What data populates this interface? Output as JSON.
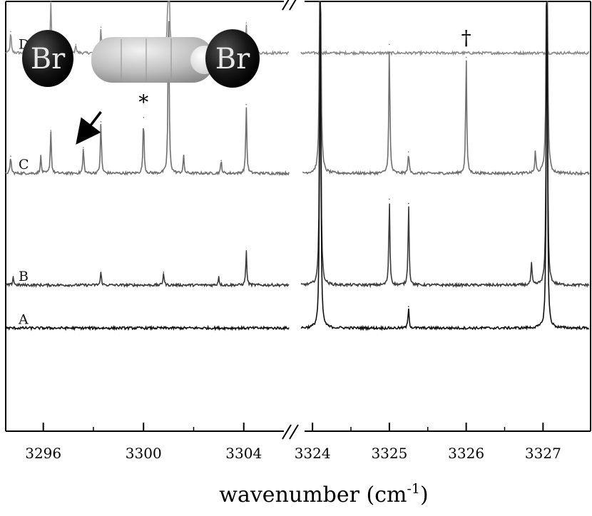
{
  "chart_data": {
    "type": "line",
    "title": "",
    "xlabel": "wavenumber (cm-1)",
    "xlabel_main": "wavenumber (cm",
    "xlabel_sup": "-1",
    "xlabel_close": ")",
    "ylabel": "",
    "grid": false,
    "legend": "none",
    "x_segments": [
      {
        "xlim": [
          3294.5,
          3305.8
        ],
        "ticks": [
          3296,
          3300,
          3304
        ],
        "tick_labels": [
          "3296",
          "3300",
          "3304"
        ]
      },
      {
        "xlim": [
          3323.85,
          3327.6
        ],
        "ticks": [
          3324,
          3325,
          3326,
          3327
        ],
        "tick_labels": [
          "3324",
          "3325",
          "3326",
          "3327"
        ]
      }
    ],
    "series": [
      {
        "name": "D",
        "color": "#8a8a8a",
        "offset": 0.88,
        "peaks_left": [
          [
            3294.7,
            0.05
          ],
          [
            3295.4,
            0.03
          ],
          [
            3296.3,
            0.12
          ],
          [
            3296.7,
            0.04
          ],
          [
            3297.3,
            0.02
          ],
          [
            3298.3,
            0.06
          ],
          [
            3301.0,
            0.42
          ],
          [
            3301.6,
            0.03
          ],
          [
            3304.1,
            0.07
          ]
        ],
        "peaks_right": []
      },
      {
        "name": "C",
        "color": "#6e6e6e",
        "offset": 0.6,
        "peaks_left": [
          [
            3294.7,
            0.04
          ],
          [
            3295.9,
            0.04
          ],
          [
            3296.3,
            0.1
          ],
          [
            3297.6,
            0.06
          ],
          [
            3298.3,
            0.12
          ],
          [
            3300.0,
            0.13
          ],
          [
            3301.0,
            0.42
          ],
          [
            3301.6,
            0.04
          ],
          [
            3303.1,
            0.03
          ],
          [
            3304.1,
            0.16
          ]
        ],
        "peaks_right": [
          [
            3324.1,
            0.9
          ],
          [
            3325.0,
            0.3
          ],
          [
            3325.25,
            0.05
          ],
          [
            3326.0,
            0.27
          ],
          [
            3326.9,
            0.05
          ],
          [
            3327.05,
            0.9
          ]
        ]
      },
      {
        "name": "B",
        "color": "#3a3a3a",
        "offset": 0.34,
        "peaks_left": [
          [
            3294.8,
            0.02
          ],
          [
            3298.3,
            0.03
          ],
          [
            3300.8,
            0.03
          ],
          [
            3303.0,
            0.02
          ],
          [
            3304.1,
            0.08
          ]
        ],
        "peaks_right": [
          [
            3324.1,
            0.9
          ],
          [
            3325.0,
            0.2
          ],
          [
            3325.25,
            0.19
          ],
          [
            3326.85,
            0.05
          ],
          [
            3327.05,
            0.9
          ]
        ]
      },
      {
        "name": "A",
        "color": "#111111",
        "offset": 0.24,
        "peaks_left": [],
        "peaks_right": [
          [
            3324.1,
            0.9
          ],
          [
            3325.25,
            0.05
          ],
          [
            3327.05,
            0.9
          ]
        ]
      }
    ],
    "annotations": [
      {
        "text": "*",
        "series": "D",
        "x": 3296.3
      },
      {
        "text": "†",
        "series": "D",
        "x": 3301.0
      },
      {
        "text": "*",
        "series": "C",
        "x": 3300.0
      },
      {
        "text": "†",
        "series": "C",
        "x": 3326.0
      }
    ],
    "molecule": {
      "atom_left_label": "Br",
      "atom_right_label": "Br",
      "arrow_from_x": 3298.3,
      "arrow_to_series": "C",
      "arrow_to_x": 3297.6
    }
  }
}
